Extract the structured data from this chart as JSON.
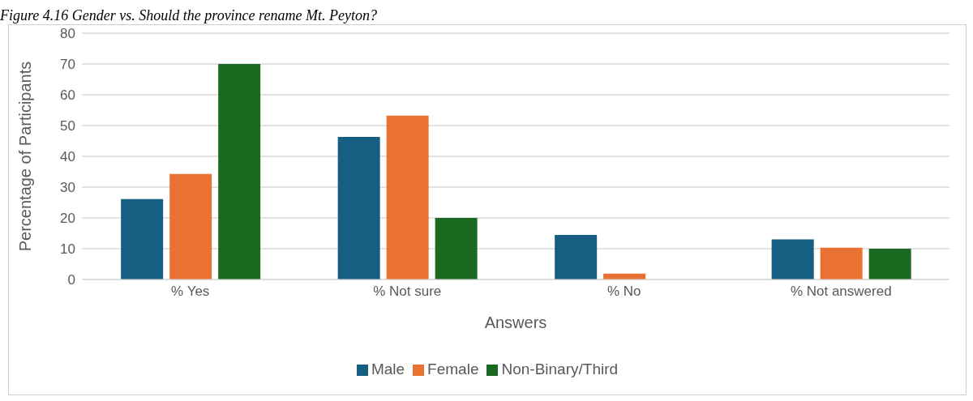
{
  "chart_data": {
    "type": "bar",
    "title": "Figure 4.16 Gender vs. Should the province rename Mt. Peyton?",
    "xlabel": "Answers",
    "ylabel": "Percentage of Participants",
    "categories": [
      "% Yes",
      "% Not sure",
      "% No",
      "% Not answered"
    ],
    "series": [
      {
        "name": "Male",
        "color": "#175f82",
        "values": [
          26.1,
          46.3,
          14.5,
          13
        ]
      },
      {
        "name": "Female",
        "color": "#e97132",
        "values": [
          34.3,
          53.2,
          1.9,
          10.3
        ]
      },
      {
        "name": "Non-Binary/Third",
        "color": "#1b6a22",
        "values": [
          70,
          20,
          0,
          10
        ]
      }
    ],
    "ylim": [
      0,
      80
    ],
    "yticks": [
      0,
      10,
      20,
      30,
      40,
      50,
      60,
      70,
      80
    ],
    "grid": "y",
    "legend": "bottom"
  }
}
